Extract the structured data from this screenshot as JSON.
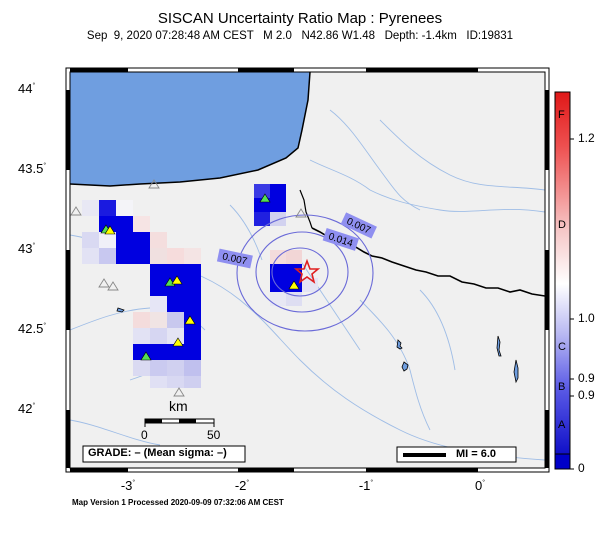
{
  "title": "SISCAN Uncertainty Ratio Map : Pyrenees",
  "subtitle": "Sep  9, 2020 07:28:48 AM CEST   M 2.0   N42.86 W1.48   Depth: -1.4km   ID:19831",
  "footer": "Map Version 1 Processed 2020-09-09 07:32:06 AM CEST",
  "axes": {
    "lat_ticks": [
      "44",
      "43.5",
      "43",
      "42.5",
      "42"
    ],
    "lon_ticks": [
      "-3",
      "-2",
      "-1",
      "0"
    ]
  },
  "contour_labels": [
    "0.007",
    "0.007",
    "0.014"
  ],
  "scale_bar": {
    "unit": "km",
    "tick0": "0",
    "tick1": "50"
  },
  "grade_box": "GRADE: – (Mean sigma: –)",
  "mi_legend": "MI = 6.0",
  "colorbar": {
    "values": [
      "1.2",
      "1.0",
      "0.9",
      "0.9",
      "0"
    ],
    "grades": [
      "F",
      "D",
      "C",
      "B",
      "A"
    ]
  },
  "colors": {
    "sea": "#6f9ee0",
    "land": "#f0f0f0",
    "low": "#0000e0",
    "high": "#e02020",
    "station": "#ffff00",
    "station_alt": "#55dd55"
  }
}
